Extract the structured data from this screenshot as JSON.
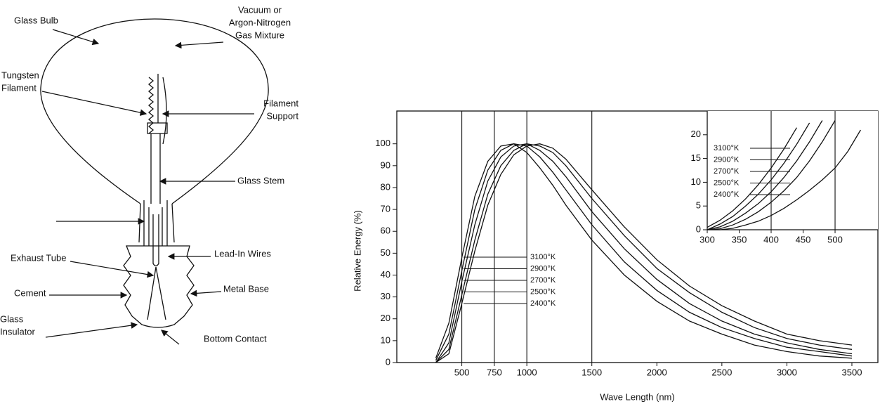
{
  "diagram": {
    "labels": [
      [
        "Glass Bulb"
      ],
      [
        "Vacuum or",
        "Argon-Nitrogen",
        "Gas Mixture"
      ],
      [
        "Tungsten",
        "Filament"
      ],
      [
        "Filament",
        "Support"
      ],
      [
        "Glass Stem"
      ],
      [
        "Exhaust Tube"
      ],
      [
        "Lead-In Wires"
      ],
      [
        "Cement"
      ],
      [
        "Metal Base"
      ],
      [
        "Glass",
        "Insulator"
      ],
      [
        "Bottom Contact"
      ]
    ]
  },
  "chart_data": [
    {
      "type": "line",
      "xlabel": "Wave Length (nm)",
      "ylabel": "Relative Energy (%)",
      "x": [
        300,
        400,
        500,
        600,
        700,
        800,
        900,
        1000,
        1100,
        1200,
        1300,
        1500,
        1750,
        2000,
        2250,
        2500,
        2750,
        3000,
        3250,
        3500
      ],
      "xlim": [
        0,
        3700
      ],
      "xticks": [
        500,
        750,
        1000,
        1500,
        2000,
        2500,
        3000,
        3500
      ],
      "ylim": [
        0,
        115
      ],
      "yticks": [
        0,
        10,
        20,
        30,
        40,
        50,
        60,
        70,
        80,
        90,
        100
      ],
      "guide_lines": [
        500,
        750,
        1000,
        1500
      ],
      "series": [
        {
          "name": "3100°K",
          "color": "#111",
          "values": [
            2,
            18,
            48,
            76,
            92,
            99,
            100,
            96,
            89,
            81,
            72,
            56,
            40,
            28,
            19,
            13,
            8,
            5,
            3,
            2
          ]
        },
        {
          "name": "2900°K",
          "color": "#111",
          "values": [
            1,
            13,
            42,
            70,
            88,
            97,
            100,
            99,
            94,
            87,
            79,
            63,
            46,
            33,
            23,
            16,
            11,
            7,
            5,
            3
          ]
        },
        {
          "name": "2700°K",
          "color": "#111",
          "values": [
            0,
            9,
            37,
            63,
            83,
            94,
            99,
            100,
            97,
            92,
            85,
            69,
            52,
            38,
            27,
            19,
            13,
            9,
            6,
            4
          ]
        },
        {
          "name": "2500°K",
          "color": "#111",
          "values": [
            0,
            6,
            31,
            56,
            77,
            90,
            97,
            100,
            99,
            96,
            90,
            75,
            58,
            43,
            32,
            23,
            16,
            11,
            8,
            6
          ]
        },
        {
          "name": "2400°K",
          "color": "#111",
          "values": [
            0,
            4,
            27,
            51,
            72,
            86,
            95,
            99,
            100,
            98,
            93,
            79,
            62,
            47,
            35,
            26,
            19,
            13,
            10,
            8
          ]
        }
      ]
    },
    {
      "type": "line",
      "x": [
        300,
        320,
        340,
        360,
        380,
        400,
        420,
        440,
        460,
        480,
        500,
        520,
        540
      ],
      "xlim": [
        300,
        567
      ],
      "xticks": [
        300,
        350,
        400,
        450,
        500
      ],
      "ylim": [
        0,
        25
      ],
      "yticks": [
        0,
        5,
        10,
        15,
        20
      ],
      "guide_lines": [
        400,
        500
      ],
      "series": [
        {
          "name": "3100°K",
          "color": "#111",
          "values": [
            0.5,
            2,
            4,
            6.5,
            9.5,
            13,
            17,
            21.5,
            null,
            null,
            null,
            null,
            null
          ]
        },
        {
          "name": "2900°K",
          "color": "#111",
          "values": [
            0,
            1.2,
            2.8,
            5,
            7.5,
            10.5,
            14,
            18,
            22.5,
            null,
            null,
            null,
            null
          ]
        },
        {
          "name": "2700°K",
          "color": "#111",
          "values": [
            0,
            0.6,
            1.8,
            3.5,
            5.5,
            8,
            11,
            14.5,
            18.5,
            23,
            null,
            null,
            null
          ]
        },
        {
          "name": "2500°K",
          "color": "#111",
          "values": [
            0,
            0.2,
            1,
            2.2,
            3.8,
            5.8,
            8.2,
            11,
            14.5,
            18.5,
            23,
            null,
            null
          ]
        },
        {
          "name": "2400°K",
          "color": "#111",
          "values": [
            0,
            0,
            0.3,
            1,
            1.8,
            3,
            4.5,
            6.3,
            8.3,
            10.5,
            13,
            16.5,
            21
          ]
        }
      ]
    }
  ]
}
